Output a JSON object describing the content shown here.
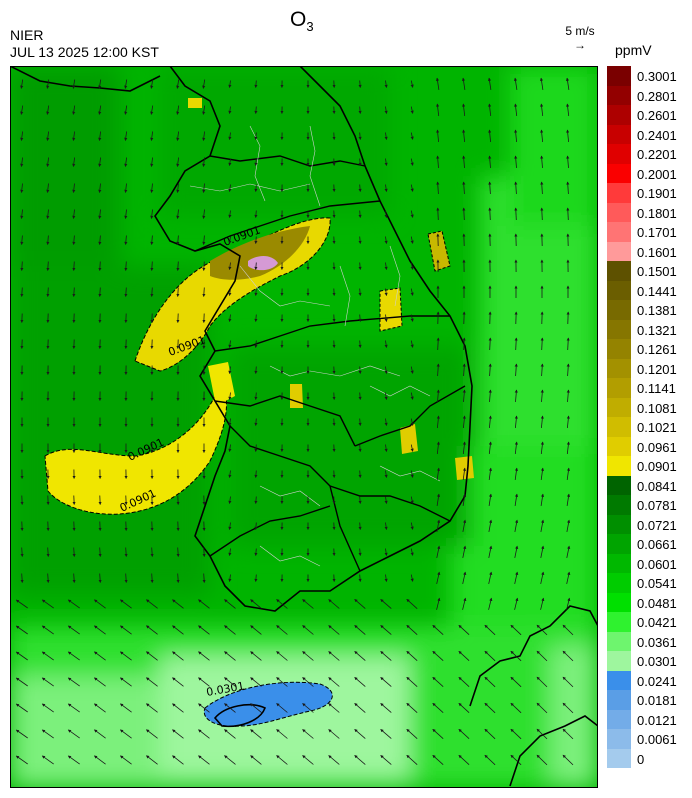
{
  "header": {
    "source": "NIER",
    "timestamp": "JUL 13 2025 12:00 KST",
    "title_main": "O",
    "title_sub": "3",
    "wind_reference_label": "5 m/s",
    "wind_reference_arrow": "→",
    "units": "ppmV"
  },
  "map": {
    "region": "Korean Peninsula",
    "variable": "ozone concentration",
    "contour_labels": [
      "0.0901",
      "0.0901",
      "0.0901",
      "0.0901",
      "0.0301"
    ],
    "colors": {
      "frame": "#000000",
      "coastline": "#000000",
      "district_borders": "#cfcfcf",
      "wind_arrows": "#1a1a1a"
    }
  },
  "legend": {
    "items": [
      {
        "label": "0.3001",
        "color": "#7a0000"
      },
      {
        "label": "0.2801",
        "color": "#930000"
      },
      {
        "label": "0.2601",
        "color": "#ad0000"
      },
      {
        "label": "0.2401",
        "color": "#c80000"
      },
      {
        "label": "0.2201",
        "color": "#e00000"
      },
      {
        "label": "0.2001",
        "color": "#fa0000"
      },
      {
        "label": "0.1901",
        "color": "#ff3a3a"
      },
      {
        "label": "0.1801",
        "color": "#ff5a5a"
      },
      {
        "label": "0.1701",
        "color": "#ff7474"
      },
      {
        "label": "0.1601",
        "color": "#ff9a9a"
      },
      {
        "label": "0.1501",
        "color": "#5e5100"
      },
      {
        "label": "0.1441",
        "color": "#6b5e00"
      },
      {
        "label": "0.1381",
        "color": "#786a00"
      },
      {
        "label": "0.1321",
        "color": "#867600"
      },
      {
        "label": "0.1261",
        "color": "#948300"
      },
      {
        "label": "0.1201",
        "color": "#a39100"
      },
      {
        "label": "0.1141",
        "color": "#b29e00"
      },
      {
        "label": "0.1081",
        "color": "#c0ad00"
      },
      {
        "label": "0.1021",
        "color": "#d0bd00"
      },
      {
        "label": "0.0961",
        "color": "#e0cd00"
      },
      {
        "label": "0.0901",
        "color": "#f0e600"
      },
      {
        "label": "0.0841",
        "color": "#006400"
      },
      {
        "label": "0.0781",
        "color": "#007a00"
      },
      {
        "label": "0.0721",
        "color": "#008f00"
      },
      {
        "label": "0.0661",
        "color": "#00a400"
      },
      {
        "label": "0.0601",
        "color": "#00b800"
      },
      {
        "label": "0.0541",
        "color": "#00cc00"
      },
      {
        "label": "0.0481",
        "color": "#00e000"
      },
      {
        "label": "0.0421",
        "color": "#2ff22f"
      },
      {
        "label": "0.0361",
        "color": "#6ef56e"
      },
      {
        "label": "0.0301",
        "color": "#9ef69e"
      },
      {
        "label": "0.0241",
        "color": "#3a8fea"
      },
      {
        "label": "0.0181",
        "color": "#5a9ee6"
      },
      {
        "label": "0.0121",
        "color": "#73ace8"
      },
      {
        "label": "0.0061",
        "color": "#8cbbea"
      },
      {
        "label": "0",
        "color": "#a4cbed"
      }
    ]
  }
}
